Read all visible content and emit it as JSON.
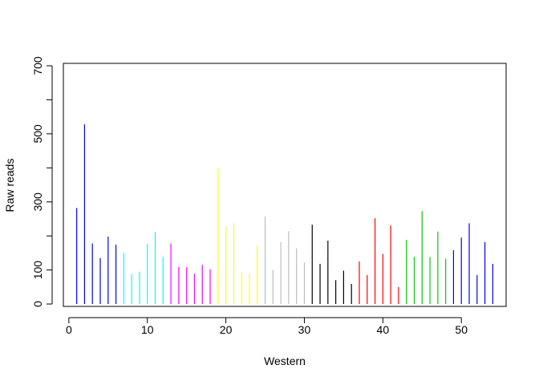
{
  "chart_data": {
    "type": "bar",
    "style": "vertical-lines (R type='h')",
    "title": "",
    "xlabel": "Western",
    "ylabel": "Raw reads",
    "xlim": [
      -0.7,
      55.7
    ],
    "ylim": [
      -7,
      707
    ],
    "x_ticks": [
      0,
      10,
      20,
      30,
      40,
      50
    ],
    "y_ticks": [
      0,
      100,
      300,
      500,
      700
    ],
    "grid": false,
    "legend": "none",
    "colors": [
      "#0000FF",
      "#00FFFF",
      "#FF00FF",
      "#FFFF00",
      "#BEBEBE",
      "#000000",
      "#FF0000",
      "#00CD00"
    ],
    "points": [
      {
        "x": 1,
        "y": 282,
        "color": "#0000FF"
      },
      {
        "x": 2,
        "y": 528,
        "color": "#0000FF"
      },
      {
        "x": 3,
        "y": 178,
        "color": "#0000FF"
      },
      {
        "x": 4,
        "y": 135,
        "color": "#0000FF"
      },
      {
        "x": 5,
        "y": 198,
        "color": "#0000FF"
      },
      {
        "x": 6,
        "y": 174,
        "color": "#0000FF"
      },
      {
        "x": 7,
        "y": 150,
        "color": "#00FFFF"
      },
      {
        "x": 8,
        "y": 88,
        "color": "#00FFFF"
      },
      {
        "x": 9,
        "y": 95,
        "color": "#00FFFF"
      },
      {
        "x": 10,
        "y": 177,
        "color": "#00FFFF"
      },
      {
        "x": 11,
        "y": 212,
        "color": "#00FFFF"
      },
      {
        "x": 12,
        "y": 138,
        "color": "#00FFFF"
      },
      {
        "x": 13,
        "y": 178,
        "color": "#FF00FF"
      },
      {
        "x": 14,
        "y": 109,
        "color": "#FF00FF"
      },
      {
        "x": 15,
        "y": 108,
        "color": "#FF00FF"
      },
      {
        "x": 16,
        "y": 89,
        "color": "#FF00FF"
      },
      {
        "x": 17,
        "y": 115,
        "color": "#FF00FF"
      },
      {
        "x": 18,
        "y": 102,
        "color": "#FF00FF"
      },
      {
        "x": 19,
        "y": 400,
        "color": "#FFFF00"
      },
      {
        "x": 20,
        "y": 228,
        "color": "#FFFF00"
      },
      {
        "x": 21,
        "y": 237,
        "color": "#FFFF00"
      },
      {
        "x": 22,
        "y": 95,
        "color": "#FFFF00"
      },
      {
        "x": 23,
        "y": 88,
        "color": "#FFFF00"
      },
      {
        "x": 24,
        "y": 174,
        "color": "#FFFF00"
      },
      {
        "x": 25,
        "y": 257,
        "color": "#BEBEBE"
      },
      {
        "x": 26,
        "y": 100,
        "color": "#BEBEBE"
      },
      {
        "x": 27,
        "y": 182,
        "color": "#BEBEBE"
      },
      {
        "x": 28,
        "y": 214,
        "color": "#BEBEBE"
      },
      {
        "x": 29,
        "y": 164,
        "color": "#BEBEBE"
      },
      {
        "x": 30,
        "y": 122,
        "color": "#BEBEBE"
      },
      {
        "x": 31,
        "y": 233,
        "color": "#000000"
      },
      {
        "x": 32,
        "y": 118,
        "color": "#000000"
      },
      {
        "x": 33,
        "y": 186,
        "color": "#000000"
      },
      {
        "x": 34,
        "y": 70,
        "color": "#000000"
      },
      {
        "x": 35,
        "y": 98,
        "color": "#000000"
      },
      {
        "x": 36,
        "y": 59,
        "color": "#000000"
      },
      {
        "x": 37,
        "y": 125,
        "color": "#FF0000"
      },
      {
        "x": 38,
        "y": 85,
        "color": "#FF0000"
      },
      {
        "x": 39,
        "y": 252,
        "color": "#FF0000"
      },
      {
        "x": 40,
        "y": 147,
        "color": "#FF0000"
      },
      {
        "x": 41,
        "y": 231,
        "color": "#FF0000"
      },
      {
        "x": 42,
        "y": 50,
        "color": "#FF0000"
      },
      {
        "x": 43,
        "y": 188,
        "color": "#00CD00"
      },
      {
        "x": 44,
        "y": 139,
        "color": "#00CD00"
      },
      {
        "x": 45,
        "y": 273,
        "color": "#00CD00"
      },
      {
        "x": 46,
        "y": 138,
        "color": "#00CD00"
      },
      {
        "x": 47,
        "y": 213,
        "color": "#00CD00"
      },
      {
        "x": 48,
        "y": 133,
        "color": "#00CD00"
      },
      {
        "x": 49,
        "y": 158,
        "color": "#0000FF"
      },
      {
        "x": 50,
        "y": 195,
        "color": "#0000FF"
      },
      {
        "x": 51,
        "y": 237,
        "color": "#0000FF"
      },
      {
        "x": 52,
        "y": 85,
        "color": "#0000FF"
      },
      {
        "x": 53,
        "y": 182,
        "color": "#0000FF"
      },
      {
        "x": 54,
        "y": 118,
        "color": "#0000FF"
      }
    ]
  }
}
